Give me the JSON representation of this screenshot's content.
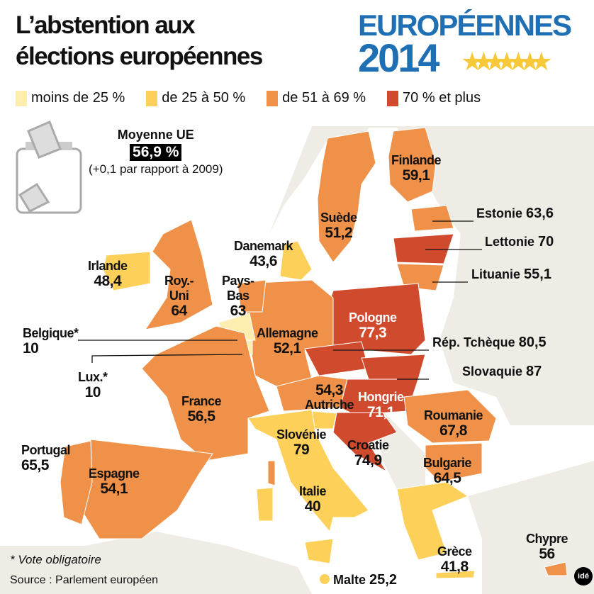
{
  "title": {
    "line1": "L’abstention aux",
    "line2": "élections européennes"
  },
  "logo": {
    "line1": "EUROPÉENNES",
    "line2": "2014",
    "stars": "★★★★★★★"
  },
  "legend": [
    {
      "label": "moins de 25 %",
      "color": "#fdeeb0"
    },
    {
      "label": "de 25 à 50 %",
      "color": "#fdd05a"
    },
    {
      "label": "de 51 à 69 %",
      "color": "#ef9148"
    },
    {
      "label": "70 % et plus",
      "color": "#d04a2e"
    }
  ],
  "average": {
    "title": "Moyenne UE",
    "value": "56,9 %",
    "note": "(+0,1 par rapport à 2009)"
  },
  "countries": {
    "finlande": {
      "name": "Finlande",
      "value": "59,1"
    },
    "suede": {
      "name": "Suède",
      "value": "51,2"
    },
    "estonie": {
      "name": "Estonie",
      "value": "63,6"
    },
    "lettonie": {
      "name": "Lettonie",
      "value": "70"
    },
    "lituanie": {
      "name": "Lituanie",
      "value": "55,1"
    },
    "danemark": {
      "name": "Danemark",
      "value": "43,6"
    },
    "irlande": {
      "name": "Irlande",
      "value": "48,4"
    },
    "royuni": {
      "name": "Roy.-\nUni",
      "name1": "Roy.-",
      "name2": "Uni",
      "value": "64"
    },
    "paysbas": {
      "name1": "Pays-",
      "name2": "Bas",
      "value": "63"
    },
    "pologne": {
      "name": "Pologne",
      "value": "77,3"
    },
    "belgique": {
      "name": "Belgique*",
      "value": "10"
    },
    "allemagne": {
      "name": "Allemagne",
      "value": "52,1"
    },
    "tcheque": {
      "name": "Rép. Tchèque",
      "value": "80,5"
    },
    "lux": {
      "name": "Lux.*",
      "value": "10"
    },
    "slovaquie": {
      "name": "Slovaquie",
      "value": "87"
    },
    "autriche": {
      "name": "Autriche",
      "value": "54,3"
    },
    "hongrie": {
      "name": "Hongrie",
      "value": "71,1"
    },
    "france": {
      "name": "France",
      "value": "56,5"
    },
    "roumanie": {
      "name": "Roumanie",
      "value": "67,8"
    },
    "slovenie": {
      "name": "Slovénie",
      "value": "79"
    },
    "croatie": {
      "name": "Croatie",
      "value": "74,9"
    },
    "portugal": {
      "name": "Portugal",
      "value": "65,5"
    },
    "espagne": {
      "name": "Espagne",
      "value": "54,1"
    },
    "bulgarie": {
      "name": "Bulgarie",
      "value": "64,5"
    },
    "italie": {
      "name": "Italie",
      "value": "40"
    },
    "chypre": {
      "name": "Chypre",
      "value": "56"
    },
    "grece": {
      "name": "Grèce",
      "value": "41,8"
    },
    "malte": {
      "name": "Malte",
      "value": "25,2"
    }
  },
  "footnote": "* Vote obligatoire",
  "source": "Source : Parlement européen",
  "credit": "idé"
}
